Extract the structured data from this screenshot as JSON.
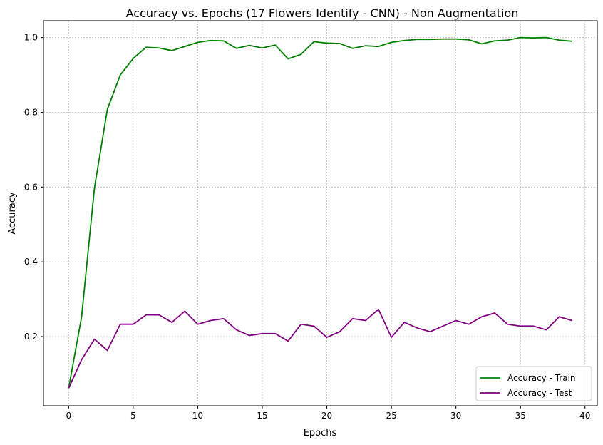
{
  "chart_data": {
    "type": "line",
    "title": "Accuracy vs. Epochs (17 Flowers Identify - CNN) - Non Augmentation",
    "xlabel": "Epochs",
    "ylabel": "Accuracy",
    "xlim": [
      -1.95,
      40.95
    ],
    "ylim": [
      0.015,
      1.045
    ],
    "xticks": [
      0,
      5,
      10,
      15,
      20,
      25,
      30,
      35,
      40
    ],
    "xtick_labels": [
      "0",
      "5",
      "10",
      "15",
      "20",
      "25",
      "30",
      "35",
      "40"
    ],
    "yticks": [
      0.2,
      0.4,
      0.6,
      0.8,
      1.0
    ],
    "ytick_labels": [
      "0.2",
      "0.4",
      "0.6",
      "0.8",
      "1.0"
    ],
    "grid": true,
    "legend_position": "lower-right",
    "x": [
      0,
      1,
      2,
      3,
      4,
      5,
      6,
      7,
      8,
      9,
      10,
      11,
      12,
      13,
      14,
      15,
      16,
      17,
      18,
      19,
      20,
      21,
      22,
      23,
      24,
      25,
      26,
      27,
      28,
      29,
      30,
      31,
      32,
      33,
      34,
      35,
      36,
      37,
      38,
      39
    ],
    "series": [
      {
        "name": "Accuracy - Train",
        "color": "#008000",
        "values": [
          0.062,
          0.252,
          0.598,
          0.808,
          0.9,
          0.944,
          0.974,
          0.972,
          0.965,
          0.976,
          0.987,
          0.992,
          0.991,
          0.971,
          0.979,
          0.972,
          0.98,
          0.943,
          0.955,
          0.989,
          0.985,
          0.984,
          0.971,
          0.978,
          0.976,
          0.987,
          0.992,
          0.995,
          0.995,
          0.996,
          0.996,
          0.994,
          0.983,
          0.991,
          0.993,
          1.0,
          0.999,
          1.0,
          0.993,
          0.99
        ]
      },
      {
        "name": "Accuracy - Test",
        "color": "#800080",
        "values": [
          0.062,
          0.138,
          0.193,
          0.163,
          0.233,
          0.233,
          0.258,
          0.258,
          0.238,
          0.268,
          0.233,
          0.243,
          0.248,
          0.218,
          0.203,
          0.208,
          0.208,
          0.188,
          0.233,
          0.228,
          0.198,
          0.213,
          0.248,
          0.243,
          0.273,
          0.198,
          0.238,
          0.223,
          0.213,
          0.228,
          0.243,
          0.233,
          0.253,
          0.263,
          0.233,
          0.228,
          0.228,
          0.218,
          0.253,
          0.243
        ]
      }
    ]
  }
}
